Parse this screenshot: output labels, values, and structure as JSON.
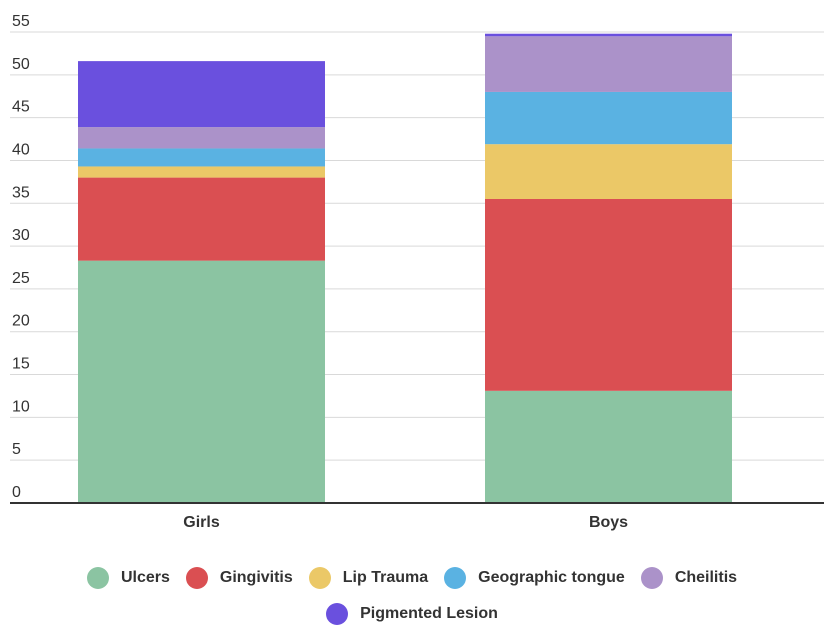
{
  "chart_data": {
    "type": "bar",
    "stacked": true,
    "title": "",
    "xlabel": "",
    "ylabel": "",
    "categories": [
      "Girls",
      "Boys"
    ],
    "ylim": [
      0,
      55
    ],
    "yticks": [
      0,
      5,
      10,
      15,
      20,
      25,
      30,
      35,
      40,
      45,
      50,
      55
    ],
    "grid": true,
    "legend_position": "bottom",
    "series": [
      {
        "name": "Ulcers",
        "values": [
          28.3,
          13.1
        ],
        "color": "#8bc4a2"
      },
      {
        "name": "Gingivitis",
        "values": [
          9.7,
          22.4
        ],
        "color": "#da4f52"
      },
      {
        "name": "Lip Trauma",
        "values": [
          1.3,
          6.4
        ],
        "color": "#ebc867"
      },
      {
        "name": "Geographic tongue",
        "values": [
          2.1,
          6.1
        ],
        "color": "#5ab2e2"
      },
      {
        "name": "Cheilitis",
        "values": [
          2.5,
          6.5
        ],
        "color": "#ab92c9"
      },
      {
        "name": "Pigmented Lesion",
        "values": [
          7.7,
          0.3
        ],
        "color": "#6a50de"
      }
    ]
  }
}
